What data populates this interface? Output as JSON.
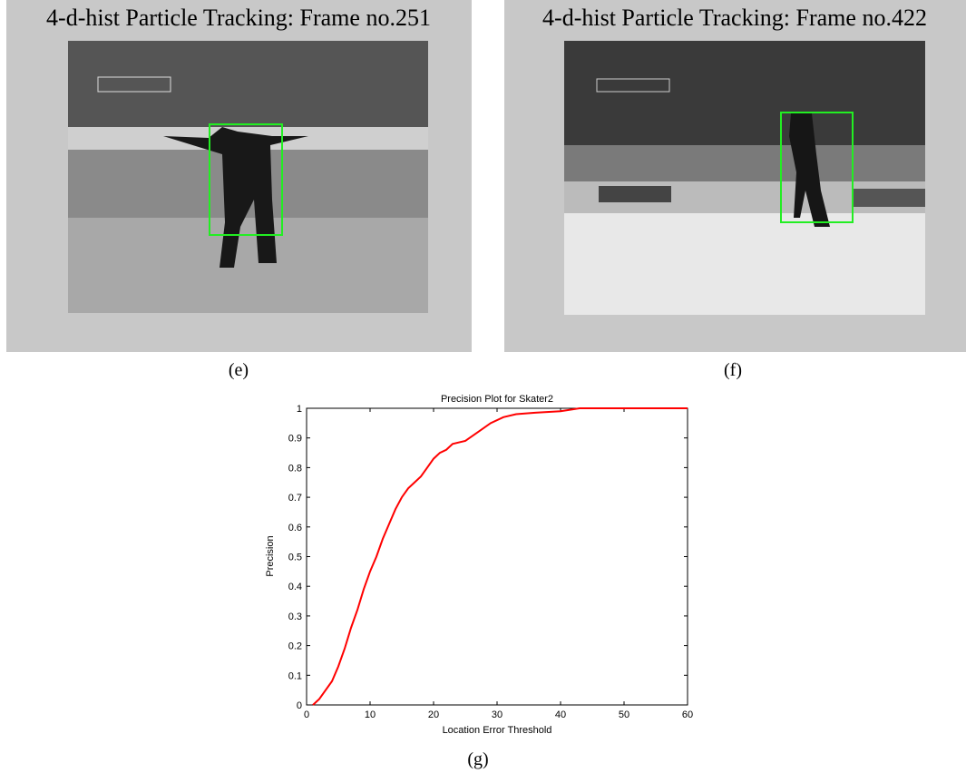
{
  "panels": [
    {
      "title": "4-d-hist Particle Tracking: Frame no.251",
      "caption": "(e)"
    },
    {
      "title": "4-d-hist Particle Tracking: Frame no.422",
      "caption": "(f)"
    }
  ],
  "chart_caption": "(g)",
  "chart_data": {
    "type": "line",
    "title": "Precision Plot for Skater2",
    "xlabel": "Location Error Threshold",
    "ylabel": "Precision",
    "x": [
      1,
      2,
      4,
      5,
      6,
      7,
      8,
      9,
      10,
      11,
      12,
      13,
      14,
      15,
      16,
      17,
      18,
      19,
      20,
      21,
      22,
      23,
      25,
      27,
      29,
      31,
      33,
      36,
      40,
      43,
      60
    ],
    "values": [
      0,
      0.02,
      0.08,
      0.13,
      0.19,
      0.26,
      0.32,
      0.39,
      0.45,
      0.5,
      0.56,
      0.61,
      0.66,
      0.7,
      0.73,
      0.75,
      0.77,
      0.8,
      0.83,
      0.85,
      0.86,
      0.88,
      0.89,
      0.92,
      0.95,
      0.97,
      0.98,
      0.985,
      0.99,
      1,
      1
    ],
    "color": "#ff0000",
    "xlim": [
      0,
      60
    ],
    "xticks": [
      0,
      10,
      20,
      30,
      40,
      50,
      60
    ],
    "ylim": [
      0,
      1
    ],
    "yticks": [
      0,
      0.1,
      0.2,
      0.3,
      0.4,
      0.5,
      0.6,
      0.7,
      0.8,
      0.9,
      1
    ]
  }
}
